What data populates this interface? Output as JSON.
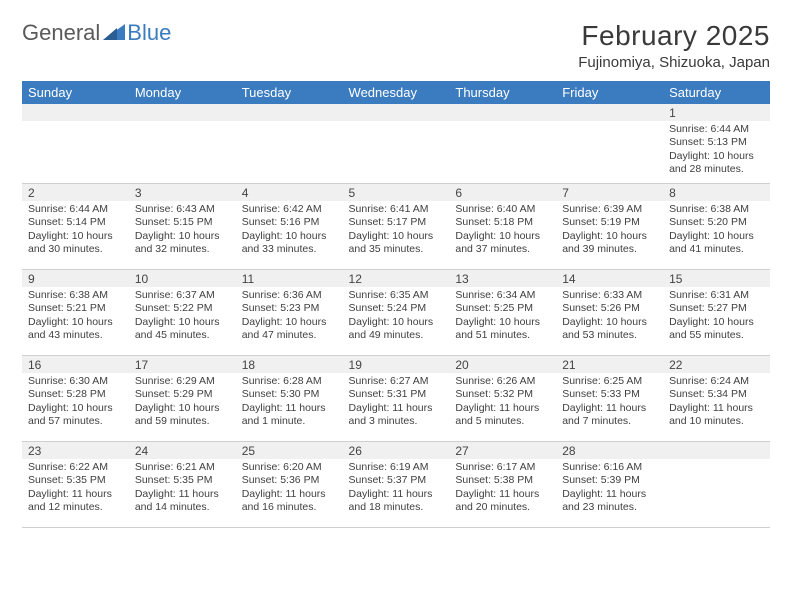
{
  "colors": {
    "header_bg": "#3b7bbf",
    "header_text": "#ffffff",
    "daynum_bg": "#f0f0f0",
    "border": "#cfcfcf",
    "text": "#404040",
    "logo_gray": "#5a5a5a",
    "logo_blue": "#3b7bbf"
  },
  "logo": {
    "text1": "General",
    "text2": "Blue"
  },
  "title": "February 2025",
  "location": "Fujinomiya, Shizuoka, Japan",
  "day_headers": [
    "Sunday",
    "Monday",
    "Tuesday",
    "Wednesday",
    "Thursday",
    "Friday",
    "Saturday"
  ],
  "weeks": [
    [
      null,
      null,
      null,
      null,
      null,
      null,
      {
        "n": "1",
        "sunrise": "6:44 AM",
        "sunset": "5:13 PM",
        "daylight": "10 hours and 28 minutes."
      }
    ],
    [
      {
        "n": "2",
        "sunrise": "6:44 AM",
        "sunset": "5:14 PM",
        "daylight": "10 hours and 30 minutes."
      },
      {
        "n": "3",
        "sunrise": "6:43 AM",
        "sunset": "5:15 PM",
        "daylight": "10 hours and 32 minutes."
      },
      {
        "n": "4",
        "sunrise": "6:42 AM",
        "sunset": "5:16 PM",
        "daylight": "10 hours and 33 minutes."
      },
      {
        "n": "5",
        "sunrise": "6:41 AM",
        "sunset": "5:17 PM",
        "daylight": "10 hours and 35 minutes."
      },
      {
        "n": "6",
        "sunrise": "6:40 AM",
        "sunset": "5:18 PM",
        "daylight": "10 hours and 37 minutes."
      },
      {
        "n": "7",
        "sunrise": "6:39 AM",
        "sunset": "5:19 PM",
        "daylight": "10 hours and 39 minutes."
      },
      {
        "n": "8",
        "sunrise": "6:38 AM",
        "sunset": "5:20 PM",
        "daylight": "10 hours and 41 minutes."
      }
    ],
    [
      {
        "n": "9",
        "sunrise": "6:38 AM",
        "sunset": "5:21 PM",
        "daylight": "10 hours and 43 minutes."
      },
      {
        "n": "10",
        "sunrise": "6:37 AM",
        "sunset": "5:22 PM",
        "daylight": "10 hours and 45 minutes."
      },
      {
        "n": "11",
        "sunrise": "6:36 AM",
        "sunset": "5:23 PM",
        "daylight": "10 hours and 47 minutes."
      },
      {
        "n": "12",
        "sunrise": "6:35 AM",
        "sunset": "5:24 PM",
        "daylight": "10 hours and 49 minutes."
      },
      {
        "n": "13",
        "sunrise": "6:34 AM",
        "sunset": "5:25 PM",
        "daylight": "10 hours and 51 minutes."
      },
      {
        "n": "14",
        "sunrise": "6:33 AM",
        "sunset": "5:26 PM",
        "daylight": "10 hours and 53 minutes."
      },
      {
        "n": "15",
        "sunrise": "6:31 AM",
        "sunset": "5:27 PM",
        "daylight": "10 hours and 55 minutes."
      }
    ],
    [
      {
        "n": "16",
        "sunrise": "6:30 AM",
        "sunset": "5:28 PM",
        "daylight": "10 hours and 57 minutes."
      },
      {
        "n": "17",
        "sunrise": "6:29 AM",
        "sunset": "5:29 PM",
        "daylight": "10 hours and 59 minutes."
      },
      {
        "n": "18",
        "sunrise": "6:28 AM",
        "sunset": "5:30 PM",
        "daylight": "11 hours and 1 minute."
      },
      {
        "n": "19",
        "sunrise": "6:27 AM",
        "sunset": "5:31 PM",
        "daylight": "11 hours and 3 minutes."
      },
      {
        "n": "20",
        "sunrise": "6:26 AM",
        "sunset": "5:32 PM",
        "daylight": "11 hours and 5 minutes."
      },
      {
        "n": "21",
        "sunrise": "6:25 AM",
        "sunset": "5:33 PM",
        "daylight": "11 hours and 7 minutes."
      },
      {
        "n": "22",
        "sunrise": "6:24 AM",
        "sunset": "5:34 PM",
        "daylight": "11 hours and 10 minutes."
      }
    ],
    [
      {
        "n": "23",
        "sunrise": "6:22 AM",
        "sunset": "5:35 PM",
        "daylight": "11 hours and 12 minutes."
      },
      {
        "n": "24",
        "sunrise": "6:21 AM",
        "sunset": "5:35 PM",
        "daylight": "11 hours and 14 minutes."
      },
      {
        "n": "25",
        "sunrise": "6:20 AM",
        "sunset": "5:36 PM",
        "daylight": "11 hours and 16 minutes."
      },
      {
        "n": "26",
        "sunrise": "6:19 AM",
        "sunset": "5:37 PM",
        "daylight": "11 hours and 18 minutes."
      },
      {
        "n": "27",
        "sunrise": "6:17 AM",
        "sunset": "5:38 PM",
        "daylight": "11 hours and 20 minutes."
      },
      {
        "n": "28",
        "sunrise": "6:16 AM",
        "sunset": "5:39 PM",
        "daylight": "11 hours and 23 minutes."
      },
      null
    ]
  ],
  "labels": {
    "sunrise": "Sunrise: ",
    "sunset": "Sunset: ",
    "daylight": "Daylight: "
  }
}
